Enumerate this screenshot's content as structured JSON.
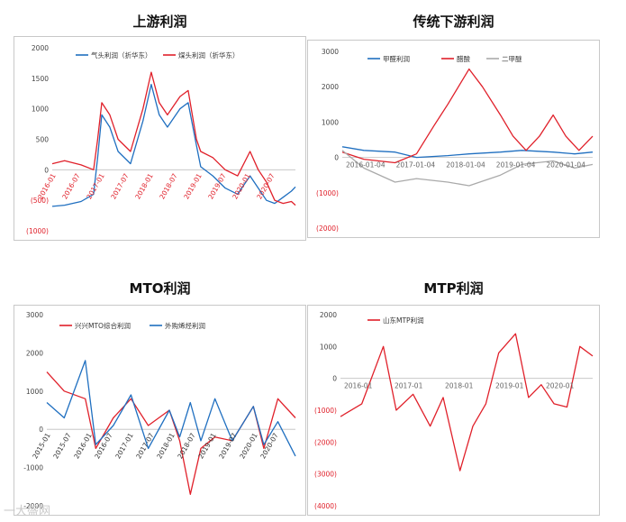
{
  "watermark": "一大盛网",
  "chart_data": [
    {
      "id": "upstream",
      "type": "line",
      "title": "上游利润",
      "ylim": [
        -1000,
        2000
      ],
      "yticks": [
        2000,
        1500,
        1000,
        500,
        0,
        -500,
        -1000
      ],
      "ytick_labels": [
        "2000",
        "1500",
        "1000",
        "500",
        "0",
        "(500)",
        "(1000)"
      ],
      "x_start": "2016-01",
      "x_end": "2020-12",
      "xtick_labels": [
        "2016-01",
        "2016-07",
        "2017-01",
        "2017-07",
        "2018-01",
        "2018-07",
        "2019-01",
        "2019-07",
        "2020-01",
        "2020-07"
      ],
      "legend": "top-center",
      "series": [
        {
          "name": "气头利润（折华东）",
          "color": "#1f6fc0",
          "x": [
            "2016-01",
            "2016-04",
            "2016-08",
            "2016-11",
            "2016-12",
            "2017-01",
            "2017-03",
            "2017-05",
            "2017-08",
            "2017-11",
            "2018-01",
            "2018-03",
            "2018-05",
            "2018-08",
            "2018-10",
            "2018-12",
            "2019-01",
            "2019-04",
            "2019-07",
            "2019-10",
            "2020-01",
            "2020-03",
            "2020-05",
            "2020-07",
            "2020-09",
            "2020-11",
            "2020-12"
          ],
          "y": [
            -600,
            -580,
            -520,
            -400,
            200,
            900,
            700,
            300,
            100,
            800,
            1400,
            900,
            700,
            1000,
            1100,
            400,
            50,
            -100,
            -300,
            -400,
            -100,
            -300,
            -500,
            -550,
            -450,
            -350,
            -280
          ]
        },
        {
          "name": "煤头利润（折华东）",
          "color": "#e0202a",
          "x": [
            "2016-01",
            "2016-04",
            "2016-08",
            "2016-11",
            "2016-12",
            "2017-01",
            "2017-03",
            "2017-05",
            "2017-08",
            "2017-11",
            "2018-01",
            "2018-03",
            "2018-05",
            "2018-08",
            "2018-10",
            "2018-12",
            "2019-01",
            "2019-04",
            "2019-07",
            "2019-10",
            "2020-01",
            "2020-03",
            "2020-05",
            "2020-07",
            "2020-09",
            "2020-11",
            "2020-12"
          ],
          "y": [
            100,
            150,
            80,
            0,
            500,
            1100,
            900,
            500,
            300,
            1000,
            1600,
            1100,
            900,
            1200,
            1300,
            500,
            300,
            200,
            0,
            -100,
            300,
            0,
            -200,
            -500,
            -550,
            -520,
            -580
          ]
        }
      ]
    },
    {
      "id": "downstream",
      "type": "line",
      "title": "传统下游利润",
      "ylim": [
        -2000,
        3000
      ],
      "yticks": [
        3000,
        2000,
        1000,
        0,
        -1000,
        -2000
      ],
      "ytick_labels": [
        "3000",
        "2000",
        "1000",
        "0",
        "(1000)",
        "(2000)"
      ],
      "x_start": "2016-01-04",
      "x_end": "2020-10-04",
      "xtick_labels": [
        "2016-01-04",
        "2017-01-04",
        "2018-01-04",
        "2019-01-04",
        "2020-01-04"
      ],
      "legend": "top-center",
      "series": [
        {
          "name": "甲醛利润",
          "color": "#1f6fc0",
          "x": [
            "2016-01-04",
            "2016-06-01",
            "2017-01-04",
            "2017-06-01",
            "2018-01-04",
            "2018-06-01",
            "2019-01-04",
            "2019-06-01",
            "2020-01-04",
            "2020-06-01",
            "2020-10-04"
          ],
          "y": [
            300,
            200,
            150,
            0,
            50,
            100,
            150,
            200,
            150,
            100,
            150
          ]
        },
        {
          "name": "醋酸",
          "color": "#e0202a",
          "x": [
            "2016-01-04",
            "2016-06-01",
            "2017-01-04",
            "2017-06-01",
            "2017-10-01",
            "2018-01-04",
            "2018-06-01",
            "2018-09-01",
            "2019-01-04",
            "2019-04-01",
            "2019-07-01",
            "2019-10-01",
            "2020-01-04",
            "2020-04-01",
            "2020-07-01",
            "2020-10-04"
          ],
          "y": [
            150,
            -50,
            -150,
            100,
            900,
            1500,
            2500,
            2000,
            1200,
            600,
            200,
            600,
            1200,
            600,
            200,
            600
          ]
        },
        {
          "name": "二甲醚",
          "color": "#aaaaaa",
          "x": [
            "2016-01-04",
            "2016-06-01",
            "2017-01-04",
            "2017-06-01",
            "2018-01-04",
            "2018-06-01",
            "2019-01-04",
            "2019-06-01",
            "2020-01-04",
            "2020-06-01",
            "2020-10-04"
          ],
          "y": [
            200,
            -300,
            -700,
            -600,
            -700,
            -800,
            -500,
            -200,
            -100,
            -300,
            -200
          ]
        }
      ]
    },
    {
      "id": "mto",
      "type": "line",
      "title": "MTO利润",
      "ylim": [
        -2000,
        3000
      ],
      "yticks": [
        3000,
        2000,
        1000,
        0,
        -1000,
        -2000
      ],
      "ytick_labels": [
        "3000",
        "2000",
        "1000",
        "0",
        "-1000",
        "-2000"
      ],
      "x_start": "2015-01",
      "x_end": "2020-12",
      "xtick_labels": [
        "2015-01",
        "2015-07",
        "2016-01",
        "2016-07",
        "2017-01",
        "2017-07",
        "2018-01",
        "2018-07",
        "2019-01",
        "2019-07",
        "2020-01",
        "2020-07"
      ],
      "legend": "top-center",
      "series": [
        {
          "name": "兴兴MTO综合利润",
          "color": "#e0202a",
          "x": [
            "2015-01",
            "2015-06",
            "2015-12",
            "2016-03",
            "2016-08",
            "2017-01",
            "2017-06",
            "2017-12",
            "2018-03",
            "2018-06",
            "2018-09",
            "2019-01",
            "2019-06",
            "2019-12",
            "2020-03",
            "2020-07",
            "2020-12"
          ],
          "y": [
            1500,
            1000,
            800,
            -500,
            300,
            800,
            100,
            500,
            -300,
            -1700,
            -500,
            -200,
            -300,
            600,
            -500,
            800,
            300
          ]
        },
        {
          "name": "外购烯烃利润",
          "color": "#1f6fc0",
          "x": [
            "2015-01",
            "2015-06",
            "2015-12",
            "2016-03",
            "2016-08",
            "2017-01",
            "2017-06",
            "2017-12",
            "2018-03",
            "2018-06",
            "2018-09",
            "2019-01",
            "2019-06",
            "2019-12",
            "2020-03",
            "2020-07",
            "2020-12"
          ],
          "y": [
            700,
            300,
            1800,
            -400,
            100,
            900,
            -500,
            500,
            -200,
            700,
            -300,
            800,
            -300,
            600,
            -400,
            200,
            -700
          ]
        }
      ]
    },
    {
      "id": "mtp",
      "type": "line",
      "title": "MTP利润",
      "ylim": [
        -4000,
        2000
      ],
      "yticks": [
        2000,
        1000,
        0,
        -1000,
        -2000,
        -3000,
        -4000
      ],
      "ytick_labels": [
        "2000",
        "1000",
        "0",
        "(1000)",
        "(2000)",
        "(3000)",
        "(4000)"
      ],
      "x_start": "2016-01",
      "x_end": "2020-12",
      "xtick_labels": [
        "2016-01",
        "2017-01",
        "2018-01",
        "2019-01",
        "2020-01"
      ],
      "legend": "top-left",
      "series": [
        {
          "name": "山东MTP利润",
          "color": "#e0202a",
          "x": [
            "2016-01",
            "2016-06",
            "2016-11",
            "2017-02",
            "2017-06",
            "2017-10",
            "2018-01",
            "2018-05",
            "2018-08",
            "2018-11",
            "2019-02",
            "2019-06",
            "2019-09",
            "2019-12",
            "2020-03",
            "2020-06",
            "2020-09",
            "2020-12"
          ],
          "y": [
            -1200,
            -800,
            1000,
            -1000,
            -500,
            -1500,
            -600,
            -2900,
            -1500,
            -800,
            800,
            1400,
            -600,
            -200,
            -800,
            -900,
            1000,
            700
          ]
        }
      ]
    }
  ]
}
